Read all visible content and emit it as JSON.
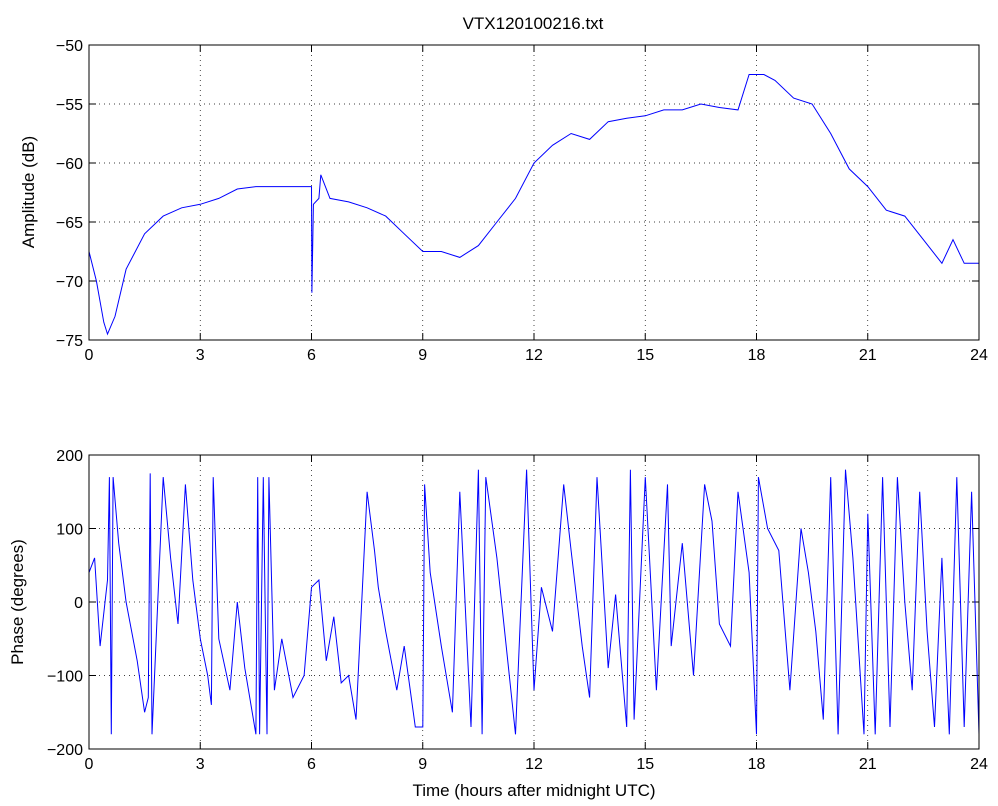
{
  "colors": {
    "series": "#0000ff",
    "axes": "#000000",
    "background": "#ffffff"
  },
  "chart_data": [
    {
      "type": "line",
      "title": "VTX120100216.txt",
      "xlabel": "",
      "ylabel": "Amplitude (dB)",
      "xlim": [
        0,
        24
      ],
      "ylim": [
        -75,
        -50
      ],
      "xticks": [
        0,
        3,
        6,
        9,
        12,
        15,
        18,
        21,
        24
      ],
      "xtick_labels": [
        "0",
        "3",
        "6",
        "9",
        "12",
        "15",
        "18",
        "21",
        "24"
      ],
      "yticks": [
        -75,
        -70,
        -65,
        -60,
        -55,
        -50
      ],
      "ytick_labels": [
        "−75",
        "−70",
        "−65",
        "−60",
        "−55",
        "−50"
      ],
      "grid": true,
      "series": [
        {
          "x": [
            0,
            0.2,
            0.4,
            0.5,
            0.7,
            1.0,
            1.5,
            2.0,
            2.5,
            3.0,
            3.5,
            4.0,
            4.5,
            5.0,
            5.5,
            6.0,
            6.01,
            6.05,
            6.2,
            6.25,
            6.5,
            7.0,
            7.5,
            8.0,
            8.5,
            9.0,
            9.5,
            10.0,
            10.5,
            11.0,
            11.5,
            12.0,
            12.5,
            13.0,
            13.5,
            14.0,
            14.5,
            15.0,
            15.5,
            16.0,
            16.5,
            17.0,
            17.5,
            17.8,
            18.2,
            18.5,
            19.0,
            19.5,
            20.0,
            20.5,
            21.0,
            21.5,
            22.0,
            22.5,
            23.0,
            23.3,
            23.6,
            24.0
          ],
          "y": [
            -67.5,
            -70,
            -73.5,
            -74.5,
            -73,
            -69,
            -66,
            -64.5,
            -63.8,
            -63.5,
            -63,
            -62.2,
            -62,
            -62,
            -62,
            -62,
            -71,
            -63.5,
            -63,
            -61,
            -63,
            -63.3,
            -63.8,
            -64.5,
            -66,
            -67.5,
            -67.5,
            -68,
            -67,
            -65,
            -63,
            -60,
            -58.5,
            -57.5,
            -58,
            -56.5,
            -56.2,
            -56,
            -55.5,
            -55.5,
            -55,
            -55.3,
            -55.5,
            -52.5,
            -52.5,
            -53,
            -54.5,
            -55,
            -57.5,
            -60.5,
            -62,
            -64,
            -64.5,
            -66.5,
            -68.5,
            -66.5,
            -68.5,
            -68.5
          ]
        }
      ]
    },
    {
      "type": "line",
      "title": "",
      "xlabel": "Time (hours after midnight UTC)",
      "ylabel": "Phase (degrees)",
      "xlim": [
        0,
        24
      ],
      "ylim": [
        -200,
        200
      ],
      "xticks": [
        0,
        3,
        6,
        9,
        12,
        15,
        18,
        21,
        24
      ],
      "xtick_labels": [
        "0",
        "3",
        "6",
        "9",
        "12",
        "15",
        "18",
        "21",
        "24"
      ],
      "yticks": [
        -200,
        -100,
        0,
        100,
        200
      ],
      "ytick_labels": [
        "−200",
        "−100",
        "0",
        "100",
        "200"
      ],
      "grid": true,
      "series": [
        {
          "x": [
            0,
            0.15,
            0.3,
            0.5,
            0.55,
            0.6,
            0.65,
            0.8,
            1.0,
            1.3,
            1.5,
            1.6,
            1.65,
            1.7,
            2.0,
            2.2,
            2.4,
            2.6,
            2.8,
            3.0,
            3.2,
            3.3,
            3.35,
            3.5,
            3.8,
            4.0,
            4.2,
            4.5,
            4.55,
            4.6,
            4.7,
            4.8,
            4.85,
            5.0,
            5.2,
            5.5,
            5.8,
            6.0,
            6.2,
            6.4,
            6.6,
            6.8,
            7.0,
            7.2,
            7.5,
            7.7,
            7.8,
            8.0,
            8.3,
            8.5,
            8.8,
            9.0,
            9.05,
            9.2,
            9.5,
            9.8,
            10.0,
            10.3,
            10.5,
            10.6,
            10.7,
            11.0,
            11.5,
            11.8,
            12.0,
            12.2,
            12.5,
            12.8,
            13.0,
            13.3,
            13.5,
            13.7,
            14.0,
            14.2,
            14.5,
            14.6,
            14.7,
            15.0,
            15.3,
            15.6,
            15.7,
            16.0,
            16.3,
            16.6,
            16.8,
            17.0,
            17.3,
            17.5,
            17.8,
            18.0,
            18.05,
            18.3,
            18.6,
            18.9,
            19.2,
            19.4,
            19.6,
            19.8,
            20.0,
            20.2,
            20.4,
            20.6,
            20.9,
            21.0,
            21.2,
            21.4,
            21.6,
            21.8,
            22.0,
            22.2,
            22.4,
            22.6,
            22.8,
            23.0,
            23.2,
            23.4,
            23.6,
            23.8,
            24.0
          ],
          "y": [
            40,
            60,
            -60,
            30,
            170,
            -180,
            170,
            80,
            0,
            -80,
            -150,
            -130,
            175,
            -180,
            170,
            60,
            -30,
            160,
            30,
            -50,
            -100,
            -140,
            170,
            -50,
            -120,
            0,
            -90,
            -180,
            170,
            -180,
            170,
            -180,
            170,
            -120,
            -50,
            -130,
            -100,
            20,
            30,
            -80,
            -20,
            -110,
            -100,
            -160,
            150,
            70,
            20,
            -40,
            -120,
            -60,
            -170,
            -170,
            160,
            40,
            -60,
            -150,
            150,
            -170,
            180,
            -180,
            170,
            60,
            -180,
            180,
            -120,
            20,
            -40,
            160,
            70,
            -60,
            -130,
            170,
            -90,
            10,
            -170,
            180,
            -160,
            170,
            -120,
            160,
            -60,
            80,
            -100,
            160,
            110,
            -30,
            -60,
            150,
            40,
            -180,
            170,
            100,
            70,
            -120,
            100,
            40,
            -40,
            -160,
            170,
            -180,
            180,
            60,
            -180,
            120,
            -180,
            170,
            -170,
            170,
            0,
            -120,
            150,
            -40,
            -170,
            60,
            -180,
            170,
            -170,
            150,
            -180
          ]
        }
      ]
    }
  ]
}
